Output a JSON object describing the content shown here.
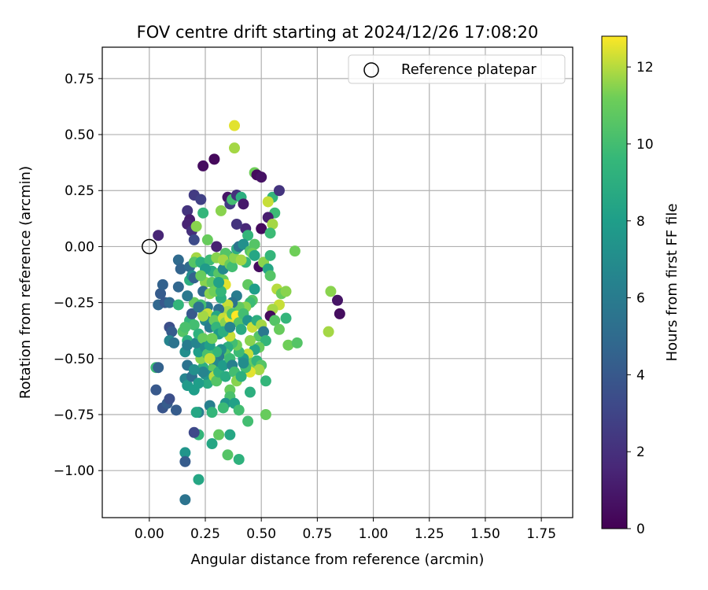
{
  "chart_data": {
    "type": "scatter",
    "title": "FOV centre drift starting at 2024/12/26 17:08:20",
    "xlabel": "Angular distance from reference (arcmin)",
    "ylabel": "Rotation from reference (arcmin)",
    "xlim": [
      -0.21,
      1.89
    ],
    "ylim": [
      -1.21,
      0.89
    ],
    "xticks": [
      0.0,
      0.25,
      0.5,
      0.75,
      1.0,
      1.25,
      1.5,
      1.75
    ],
    "xtick_labels": [
      "0.00",
      "0.25",
      "0.50",
      "0.75",
      "1.00",
      "1.25",
      "1.50",
      "1.75"
    ],
    "yticks": [
      0.75,
      0.5,
      0.25,
      0.0,
      -0.25,
      -0.5,
      -0.75,
      -1.0
    ],
    "ytick_labels": [
      "0.75",
      "0.50",
      "0.25",
      "0.00",
      "−0.25",
      "−0.50",
      "−0.75",
      "−1.00"
    ],
    "grid": true,
    "legend": {
      "position": "top-right",
      "label": "Reference platepar"
    },
    "reference_point": {
      "x": 0.0,
      "y": 0.0
    },
    "colorbar": {
      "label": "Hours from first FF file",
      "colormap": "viridis",
      "range": [
        0,
        12.8
      ],
      "ticks": [
        0,
        2,
        4,
        6,
        8,
        10,
        12
      ],
      "tick_labels": [
        "0",
        "2",
        "4",
        "6",
        "8",
        "10",
        "12"
      ]
    },
    "points": [
      {
        "x": 0.04,
        "y": 0.05,
        "c": 1.5
      },
      {
        "x": 0.24,
        "y": 0.36,
        "c": 0.5
      },
      {
        "x": 0.29,
        "y": 0.39,
        "c": 0.3
      },
      {
        "x": 0.2,
        "y": 0.23,
        "c": 2.5
      },
      {
        "x": 0.23,
        "y": 0.21,
        "c": 2.8
      },
      {
        "x": 0.17,
        "y": 0.16,
        "c": 2.2
      },
      {
        "x": 0.18,
        "y": 0.12,
        "c": 1.2
      },
      {
        "x": 0.17,
        "y": 0.1,
        "c": 1.4
      },
      {
        "x": 0.19,
        "y": 0.07,
        "c": 2.0
      },
      {
        "x": 0.2,
        "y": 0.03,
        "c": 3.3
      },
      {
        "x": 0.21,
        "y": 0.09,
        "c": 11.5
      },
      {
        "x": 0.24,
        "y": 0.15,
        "c": 9.5
      },
      {
        "x": 0.26,
        "y": 0.03,
        "c": 11.0
      },
      {
        "x": 0.3,
        "y": 0.0,
        "c": 1.3
      },
      {
        "x": 0.32,
        "y": 0.16,
        "c": 11.5
      },
      {
        "x": 0.35,
        "y": 0.22,
        "c": 0.8
      },
      {
        "x": 0.36,
        "y": 0.19,
        "c": 2.5
      },
      {
        "x": 0.37,
        "y": 0.21,
        "c": 10.0
      },
      {
        "x": 0.39,
        "y": 0.23,
        "c": 2.0
      },
      {
        "x": 0.38,
        "y": 0.54,
        "c": 12.5
      },
      {
        "x": 0.38,
        "y": 0.44,
        "c": 11.8
      },
      {
        "x": 0.41,
        "y": 0.22,
        "c": 9.0
      },
      {
        "x": 0.42,
        "y": 0.19,
        "c": 1.0
      },
      {
        "x": 0.43,
        "y": 0.08,
        "c": 1.6
      },
      {
        "x": 0.44,
        "y": 0.05,
        "c": 9.5
      },
      {
        "x": 0.39,
        "y": 0.1,
        "c": 2.2
      },
      {
        "x": 0.47,
        "y": 0.33,
        "c": 11.2
      },
      {
        "x": 0.48,
        "y": 0.32,
        "c": 0.4
      },
      {
        "x": 0.5,
        "y": 0.31,
        "c": 0.7
      },
      {
        "x": 0.55,
        "y": 0.22,
        "c": 9.5
      },
      {
        "x": 0.58,
        "y": 0.25,
        "c": 2.2
      },
      {
        "x": 0.53,
        "y": 0.2,
        "c": 12.2
      },
      {
        "x": 0.56,
        "y": 0.15,
        "c": 9.8
      },
      {
        "x": 0.53,
        "y": 0.13,
        "c": 1.2
      },
      {
        "x": 0.5,
        "y": 0.08,
        "c": 0.4
      },
      {
        "x": 0.55,
        "y": 0.1,
        "c": 11.8
      },
      {
        "x": 0.54,
        "y": 0.06,
        "c": 9.8
      },
      {
        "x": 0.47,
        "y": 0.01,
        "c": 10.5
      },
      {
        "x": 0.65,
        "y": -0.02,
        "c": 11.2
      },
      {
        "x": 0.49,
        "y": -0.09,
        "c": 0.5
      },
      {
        "x": 0.51,
        "y": -0.07,
        "c": 11.5
      },
      {
        "x": 0.54,
        "y": -0.04,
        "c": 9.5
      },
      {
        "x": 0.53,
        "y": -0.1,
        "c": 8.5
      },
      {
        "x": 0.54,
        "y": -0.13,
        "c": 10.5
      },
      {
        "x": 0.57,
        "y": -0.19,
        "c": 12.0
      },
      {
        "x": 0.59,
        "y": -0.21,
        "c": 11.0
      },
      {
        "x": 0.61,
        "y": -0.2,
        "c": 11.5
      },
      {
        "x": 0.58,
        "y": -0.26,
        "c": 12.2
      },
      {
        "x": 0.55,
        "y": -0.28,
        "c": 11.8
      },
      {
        "x": 0.54,
        "y": -0.31,
        "c": 0.4
      },
      {
        "x": 0.56,
        "y": -0.33,
        "c": 10.5
      },
      {
        "x": 0.58,
        "y": -0.37,
        "c": 11.0
      },
      {
        "x": 0.61,
        "y": -0.32,
        "c": 9.5
      },
      {
        "x": 0.62,
        "y": -0.44,
        "c": 11.2
      },
      {
        "x": 0.66,
        "y": -0.43,
        "c": 10.5
      },
      {
        "x": 0.81,
        "y": -0.2,
        "c": 11.5
      },
      {
        "x": 0.84,
        "y": -0.24,
        "c": 0.8
      },
      {
        "x": 0.85,
        "y": -0.3,
        "c": 0.5
      },
      {
        "x": 0.8,
        "y": -0.38,
        "c": 11.8
      },
      {
        "x": 0.52,
        "y": -0.6,
        "c": 9.5
      },
      {
        "x": 0.52,
        "y": -0.75,
        "c": 11.0
      },
      {
        "x": 0.45,
        "y": -0.65,
        "c": 9.0
      },
      {
        "x": 0.44,
        "y": -0.78,
        "c": 10.0
      },
      {
        "x": 0.4,
        "y": -0.95,
        "c": 9.2
      },
      {
        "x": 0.35,
        "y": -0.93,
        "c": 10.5
      },
      {
        "x": 0.36,
        "y": -0.84,
        "c": 8.5
      },
      {
        "x": 0.31,
        "y": -0.84,
        "c": 10.8
      },
      {
        "x": 0.28,
        "y": -0.88,
        "c": 8.5
      },
      {
        "x": 0.22,
        "y": -0.84,
        "c": 9.5
      },
      {
        "x": 0.2,
        "y": -0.83,
        "c": 3.2
      },
      {
        "x": 0.16,
        "y": -0.92,
        "c": 7.5
      },
      {
        "x": 0.16,
        "y": -0.96,
        "c": 4.2
      },
      {
        "x": 0.22,
        "y": -1.04,
        "c": 8.5
      },
      {
        "x": 0.16,
        "y": -1.13,
        "c": 5.5
      },
      {
        "x": 0.03,
        "y": -0.64,
        "c": 4.0
      },
      {
        "x": 0.06,
        "y": -0.72,
        "c": 3.8
      },
      {
        "x": 0.08,
        "y": -0.7,
        "c": 4.2
      },
      {
        "x": 0.09,
        "y": -0.68,
        "c": 3.5
      },
      {
        "x": 0.12,
        "y": -0.73,
        "c": 4.2
      },
      {
        "x": 0.03,
        "y": -0.54,
        "c": 9.8
      },
      {
        "x": 0.04,
        "y": -0.54,
        "c": 4.5
      },
      {
        "x": 0.04,
        "y": -0.26,
        "c": 4.8
      },
      {
        "x": 0.05,
        "y": -0.21,
        "c": 4.2
      },
      {
        "x": 0.06,
        "y": -0.17,
        "c": 4.5
      },
      {
        "x": 0.07,
        "y": -0.25,
        "c": 4.0
      },
      {
        "x": 0.09,
        "y": -0.25,
        "c": 5.0
      },
      {
        "x": 0.09,
        "y": -0.36,
        "c": 3.5
      },
      {
        "x": 0.1,
        "y": -0.38,
        "c": 4.2
      },
      {
        "x": 0.09,
        "y": -0.42,
        "c": 6.5
      },
      {
        "x": 0.11,
        "y": -0.43,
        "c": 5.5
      },
      {
        "x": 0.13,
        "y": -0.18,
        "c": 4.8
      },
      {
        "x": 0.13,
        "y": -0.06,
        "c": 5.0
      },
      {
        "x": 0.14,
        "y": -0.1,
        "c": 4.6
      },
      {
        "x": 0.13,
        "y": -0.26,
        "c": 9.5
      },
      {
        "x": 0.15,
        "y": -0.38,
        "c": 10.5
      },
      {
        "x": 0.17,
        "y": -0.42,
        "c": 9.0
      },
      {
        "x": 0.16,
        "y": -0.47,
        "c": 7.0
      },
      {
        "x": 0.17,
        "y": -0.44,
        "c": 6.0
      },
      {
        "x": 0.17,
        "y": -0.53,
        "c": 5.5
      },
      {
        "x": 0.16,
        "y": -0.59,
        "c": 6.5
      },
      {
        "x": 0.17,
        "y": -0.62,
        "c": 7.8
      },
      {
        "x": 0.19,
        "y": -0.58,
        "c": 5.2
      },
      {
        "x": 0.2,
        "y": -0.64,
        "c": 8.0
      },
      {
        "x": 0.22,
        "y": -0.74,
        "c": 6.2
      },
      {
        "x": 0.21,
        "y": -0.74,
        "c": 8.5
      },
      {
        "x": 0.18,
        "y": -0.33,
        "c": 9.5
      },
      {
        "x": 0.2,
        "y": -0.35,
        "c": 10.0
      },
      {
        "x": 0.19,
        "y": -0.3,
        "c": 4.0
      },
      {
        "x": 0.2,
        "y": -0.25,
        "c": 11.0
      },
      {
        "x": 0.17,
        "y": -0.22,
        "c": 5.8
      },
      {
        "x": 0.18,
        "y": -0.15,
        "c": 9.0
      },
      {
        "x": 0.18,
        "y": -0.09,
        "c": 5.0
      },
      {
        "x": 0.19,
        "y": -0.13,
        "c": 6.8
      },
      {
        "x": 0.2,
        "y": -0.14,
        "c": 4.5
      },
      {
        "x": 0.21,
        "y": -0.05,
        "c": 11.8
      },
      {
        "x": 0.2,
        "y": -0.07,
        "c": 10.5
      },
      {
        "x": 0.23,
        "y": -0.07,
        "c": 9.0
      },
      {
        "x": 0.25,
        "y": -0.16,
        "c": 11.5
      },
      {
        "x": 0.24,
        "y": -0.2,
        "c": 5.0
      },
      {
        "x": 0.26,
        "y": -0.27,
        "c": 5.8
      },
      {
        "x": 0.26,
        "y": -0.3,
        "c": 12.2
      },
      {
        "x": 0.25,
        "y": -0.33,
        "c": 6.8
      },
      {
        "x": 0.27,
        "y": -0.36,
        "c": 6.0
      },
      {
        "x": 0.27,
        "y": -0.21,
        "c": 11.5
      },
      {
        "x": 0.28,
        "y": -0.16,
        "c": 10.8
      },
      {
        "x": 0.28,
        "y": -0.11,
        "c": 8.8
      },
      {
        "x": 0.27,
        "y": -0.06,
        "c": 9.8
      },
      {
        "x": 0.3,
        "y": -0.05,
        "c": 11.5
      },
      {
        "x": 0.31,
        "y": -0.12,
        "c": 10.5
      },
      {
        "x": 0.33,
        "y": -0.1,
        "c": 6.8
      },
      {
        "x": 0.33,
        "y": -0.15,
        "c": 11.0
      },
      {
        "x": 0.34,
        "y": -0.17,
        "c": 12.5
      },
      {
        "x": 0.35,
        "y": -0.04,
        "c": 7.2
      },
      {
        "x": 0.34,
        "y": -0.03,
        "c": 10.5
      },
      {
        "x": 0.33,
        "y": -0.06,
        "c": 11.8
      },
      {
        "x": 0.36,
        "y": -0.08,
        "c": 11.0
      },
      {
        "x": 0.37,
        "y": -0.09,
        "c": 10.0
      },
      {
        "x": 0.38,
        "y": -0.05,
        "c": 11.5
      },
      {
        "x": 0.39,
        "y": -0.01,
        "c": 9.0
      },
      {
        "x": 0.4,
        "y": 0.0,
        "c": 5.5
      },
      {
        "x": 0.42,
        "y": 0.01,
        "c": 7.2
      },
      {
        "x": 0.45,
        "y": -0.02,
        "c": 10.5
      },
      {
        "x": 0.46,
        "y": -0.03,
        "c": 11.2
      },
      {
        "x": 0.47,
        "y": -0.04,
        "c": 8.5
      },
      {
        "x": 0.43,
        "y": -0.07,
        "c": 9.5
      },
      {
        "x": 0.41,
        "y": -0.06,
        "c": 11.8
      },
      {
        "x": 0.44,
        "y": -0.17,
        "c": 10.8
      },
      {
        "x": 0.47,
        "y": -0.19,
        "c": 8.0
      },
      {
        "x": 0.46,
        "y": -0.24,
        "c": 10.5
      },
      {
        "x": 0.45,
        "y": -0.25,
        "c": 9.8
      },
      {
        "x": 0.43,
        "y": -0.27,
        "c": 11.5
      },
      {
        "x": 0.4,
        "y": -0.27,
        "c": 10.8
      },
      {
        "x": 0.39,
        "y": -0.22,
        "c": 6.0
      },
      {
        "x": 0.37,
        "y": -0.25,
        "c": 5.5
      },
      {
        "x": 0.35,
        "y": -0.26,
        "c": 12.2
      },
      {
        "x": 0.35,
        "y": -0.29,
        "c": 11.8
      },
      {
        "x": 0.32,
        "y": -0.23,
        "c": 9.0
      },
      {
        "x": 0.31,
        "y": -0.28,
        "c": 5.2
      },
      {
        "x": 0.3,
        "y": -0.31,
        "c": 8.5
      },
      {
        "x": 0.29,
        "y": -0.33,
        "c": 11.0
      },
      {
        "x": 0.3,
        "y": -0.36,
        "c": 9.5
      },
      {
        "x": 0.31,
        "y": -0.39,
        "c": 7.8
      },
      {
        "x": 0.33,
        "y": -0.32,
        "c": 12.2
      },
      {
        "x": 0.34,
        "y": -0.34,
        "c": 11.5
      },
      {
        "x": 0.36,
        "y": -0.32,
        "c": 12.5
      },
      {
        "x": 0.37,
        "y": -0.3,
        "c": 10.2
      },
      {
        "x": 0.39,
        "y": -0.31,
        "c": 12.8
      },
      {
        "x": 0.4,
        "y": -0.34,
        "c": 10.5
      },
      {
        "x": 0.41,
        "y": -0.37,
        "c": 8.8
      },
      {
        "x": 0.42,
        "y": -0.3,
        "c": 10.0
      },
      {
        "x": 0.44,
        "y": -0.33,
        "c": 7.5
      },
      {
        "x": 0.46,
        "y": -0.36,
        "c": 12.2
      },
      {
        "x": 0.48,
        "y": -0.33,
        "c": 9.0
      },
      {
        "x": 0.5,
        "y": -0.35,
        "c": 11.8
      },
      {
        "x": 0.49,
        "y": -0.4,
        "c": 10.5
      },
      {
        "x": 0.51,
        "y": -0.38,
        "c": 5.8
      },
      {
        "x": 0.52,
        "y": -0.42,
        "c": 9.5
      },
      {
        "x": 0.49,
        "y": -0.45,
        "c": 11.0
      },
      {
        "x": 0.47,
        "y": -0.46,
        "c": 8.5
      },
      {
        "x": 0.45,
        "y": -0.42,
        "c": 11.5
      },
      {
        "x": 0.44,
        "y": -0.48,
        "c": 12.2
      },
      {
        "x": 0.46,
        "y": -0.52,
        "c": 11.0
      },
      {
        "x": 0.48,
        "y": -0.51,
        "c": 9.5
      },
      {
        "x": 0.5,
        "y": -0.53,
        "c": 10.5
      },
      {
        "x": 0.49,
        "y": -0.55,
        "c": 11.8
      },
      {
        "x": 0.45,
        "y": -0.56,
        "c": 12.5
      },
      {
        "x": 0.43,
        "y": -0.54,
        "c": 10.0
      },
      {
        "x": 0.42,
        "y": -0.5,
        "c": 8.0
      },
      {
        "x": 0.4,
        "y": -0.47,
        "c": 9.8
      },
      {
        "x": 0.39,
        "y": -0.44,
        "c": 11.2
      },
      {
        "x": 0.37,
        "y": -0.43,
        "c": 10.0
      },
      {
        "x": 0.36,
        "y": -0.4,
        "c": 12.2
      },
      {
        "x": 0.35,
        "y": -0.45,
        "c": 9.0
      },
      {
        "x": 0.34,
        "y": -0.48,
        "c": 10.5
      },
      {
        "x": 0.32,
        "y": -0.46,
        "c": 7.2
      },
      {
        "x": 0.31,
        "y": -0.49,
        "c": 6.0
      },
      {
        "x": 0.3,
        "y": -0.47,
        "c": 9.5
      },
      {
        "x": 0.29,
        "y": -0.52,
        "c": 6.8
      },
      {
        "x": 0.28,
        "y": -0.55,
        "c": 10.8
      },
      {
        "x": 0.27,
        "y": -0.58,
        "c": 5.2
      },
      {
        "x": 0.26,
        "y": -0.61,
        "c": 8.8
      },
      {
        "x": 0.25,
        "y": -0.57,
        "c": 7.5
      },
      {
        "x": 0.24,
        "y": -0.54,
        "c": 9.0
      },
      {
        "x": 0.23,
        "y": -0.5,
        "c": 11.5
      },
      {
        "x": 0.22,
        "y": -0.47,
        "c": 8.0
      },
      {
        "x": 0.21,
        "y": -0.43,
        "c": 6.5
      },
      {
        "x": 0.22,
        "y": -0.39,
        "c": 9.2
      },
      {
        "x": 0.24,
        "y": -0.41,
        "c": 11.0
      },
      {
        "x": 0.25,
        "y": -0.45,
        "c": 7.0
      },
      {
        "x": 0.26,
        "y": -0.48,
        "c": 10.2
      },
      {
        "x": 0.27,
        "y": -0.44,
        "c": 8.2
      },
      {
        "x": 0.28,
        "y": -0.41,
        "c": 11.2
      },
      {
        "x": 0.29,
        "y": -0.58,
        "c": 12.0
      },
      {
        "x": 0.3,
        "y": -0.6,
        "c": 10.5
      },
      {
        "x": 0.31,
        "y": -0.56,
        "c": 9.2
      },
      {
        "x": 0.33,
        "y": -0.53,
        "c": 7.8
      },
      {
        "x": 0.34,
        "y": -0.58,
        "c": 8.8
      },
      {
        "x": 0.36,
        "y": -0.5,
        "c": 9.8
      },
      {
        "x": 0.37,
        "y": -0.53,
        "c": 6.2
      },
      {
        "x": 0.38,
        "y": -0.56,
        "c": 10.0
      },
      {
        "x": 0.39,
        "y": -0.6,
        "c": 11.5
      },
      {
        "x": 0.41,
        "y": -0.58,
        "c": 9.0
      },
      {
        "x": 0.42,
        "y": -0.52,
        "c": 7.0
      },
      {
        "x": 0.36,
        "y": -0.64,
        "c": 11.0
      },
      {
        "x": 0.36,
        "y": -0.67,
        "c": 10.2
      },
      {
        "x": 0.34,
        "y": -0.7,
        "c": 7.5
      },
      {
        "x": 0.33,
        "y": -0.72,
        "c": 9.8
      },
      {
        "x": 0.38,
        "y": -0.7,
        "c": 8.2
      },
      {
        "x": 0.4,
        "y": -0.73,
        "c": 10.0
      },
      {
        "x": 0.27,
        "y": -0.71,
        "c": 6.2
      },
      {
        "x": 0.28,
        "y": -0.74,
        "c": 9.5
      },
      {
        "x": 0.24,
        "y": -0.56,
        "c": 6.5
      },
      {
        "x": 0.22,
        "y": -0.61,
        "c": 8.0
      },
      {
        "x": 0.2,
        "y": -0.55,
        "c": 7.2
      },
      {
        "x": 0.27,
        "y": -0.5,
        "c": 12.2
      },
      {
        "x": 0.33,
        "y": -0.38,
        "c": 9.0
      },
      {
        "x": 0.36,
        "y": -0.36,
        "c": 6.5
      },
      {
        "x": 0.23,
        "y": -0.26,
        "c": 10.0
      },
      {
        "x": 0.24,
        "y": -0.31,
        "c": 11.8
      },
      {
        "x": 0.22,
        "y": -0.27,
        "c": 5.5
      },
      {
        "x": 0.29,
        "y": -0.2,
        "c": 11.2
      },
      {
        "x": 0.32,
        "y": -0.2,
        "c": 9.5
      },
      {
        "x": 0.31,
        "y": -0.16,
        "c": 8.2
      },
      {
        "x": 0.25,
        "y": -0.1,
        "c": 7.8
      },
      {
        "x": 0.23,
        "y": -0.13,
        "c": 11.0
      },
      {
        "x": 0.16,
        "y": -0.36,
        "c": 10.2
      }
    ]
  }
}
